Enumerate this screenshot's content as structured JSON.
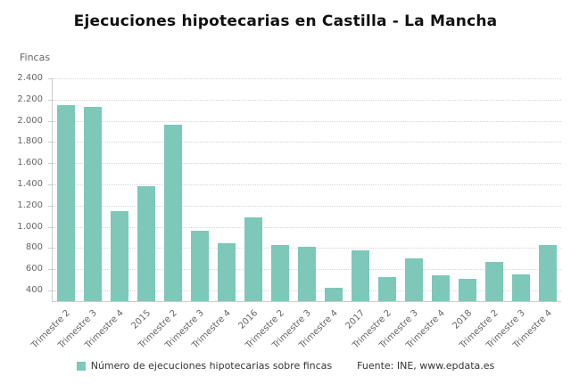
{
  "title": "Ejecuciones hipotecarias en Castilla - La Mancha",
  "y_axis_title": "Fincas",
  "legend": {
    "series_label": "Número de ejecuciones hipotecarias sobre fincas",
    "source": "Fuente: INE, www.epdata.es"
  },
  "colors": {
    "bar": "#7dc8b9",
    "grid": "#d4d4d4",
    "axis_text": "#666666",
    "title_text": "#111111"
  },
  "chart_data": {
    "type": "bar",
    "title": "Ejecuciones hipotecarias en Castilla - La Mancha",
    "xlabel": "",
    "ylabel": "Fincas",
    "categories": [
      "Trimestre 2",
      "Trimestre 3",
      "Trimestre 4",
      "2015",
      "Trimestre 2",
      "Trimestre 3",
      "Trimestre 4",
      "2016",
      "Trimestre 2",
      "Trimestre 3",
      "Trimestre 4",
      "2017",
      "Trimestre 2",
      "Trimestre 3",
      "Trimestre 4",
      "2018",
      "Trimestre 2",
      "Trimestre 3",
      "Trimestre 4"
    ],
    "values": [
      2150,
      2130,
      1150,
      1380,
      1960,
      960,
      850,
      1090,
      830,
      810,
      430,
      780,
      530,
      700,
      540,
      510,
      670,
      550,
      830
    ],
    "ylim": [
      300,
      2400
    ],
    "yticks": [
      400,
      600,
      800,
      1000,
      1200,
      1400,
      1600,
      1800,
      2000,
      2200,
      2400
    ],
    "ytick_labels": [
      "400",
      "600",
      "800",
      "1.000",
      "1.200",
      "1.400",
      "1.600",
      "1.800",
      "2.000",
      "2.200",
      "2.400"
    ],
    "grid": "horizontal-dotted",
    "legend_position": "bottom"
  }
}
